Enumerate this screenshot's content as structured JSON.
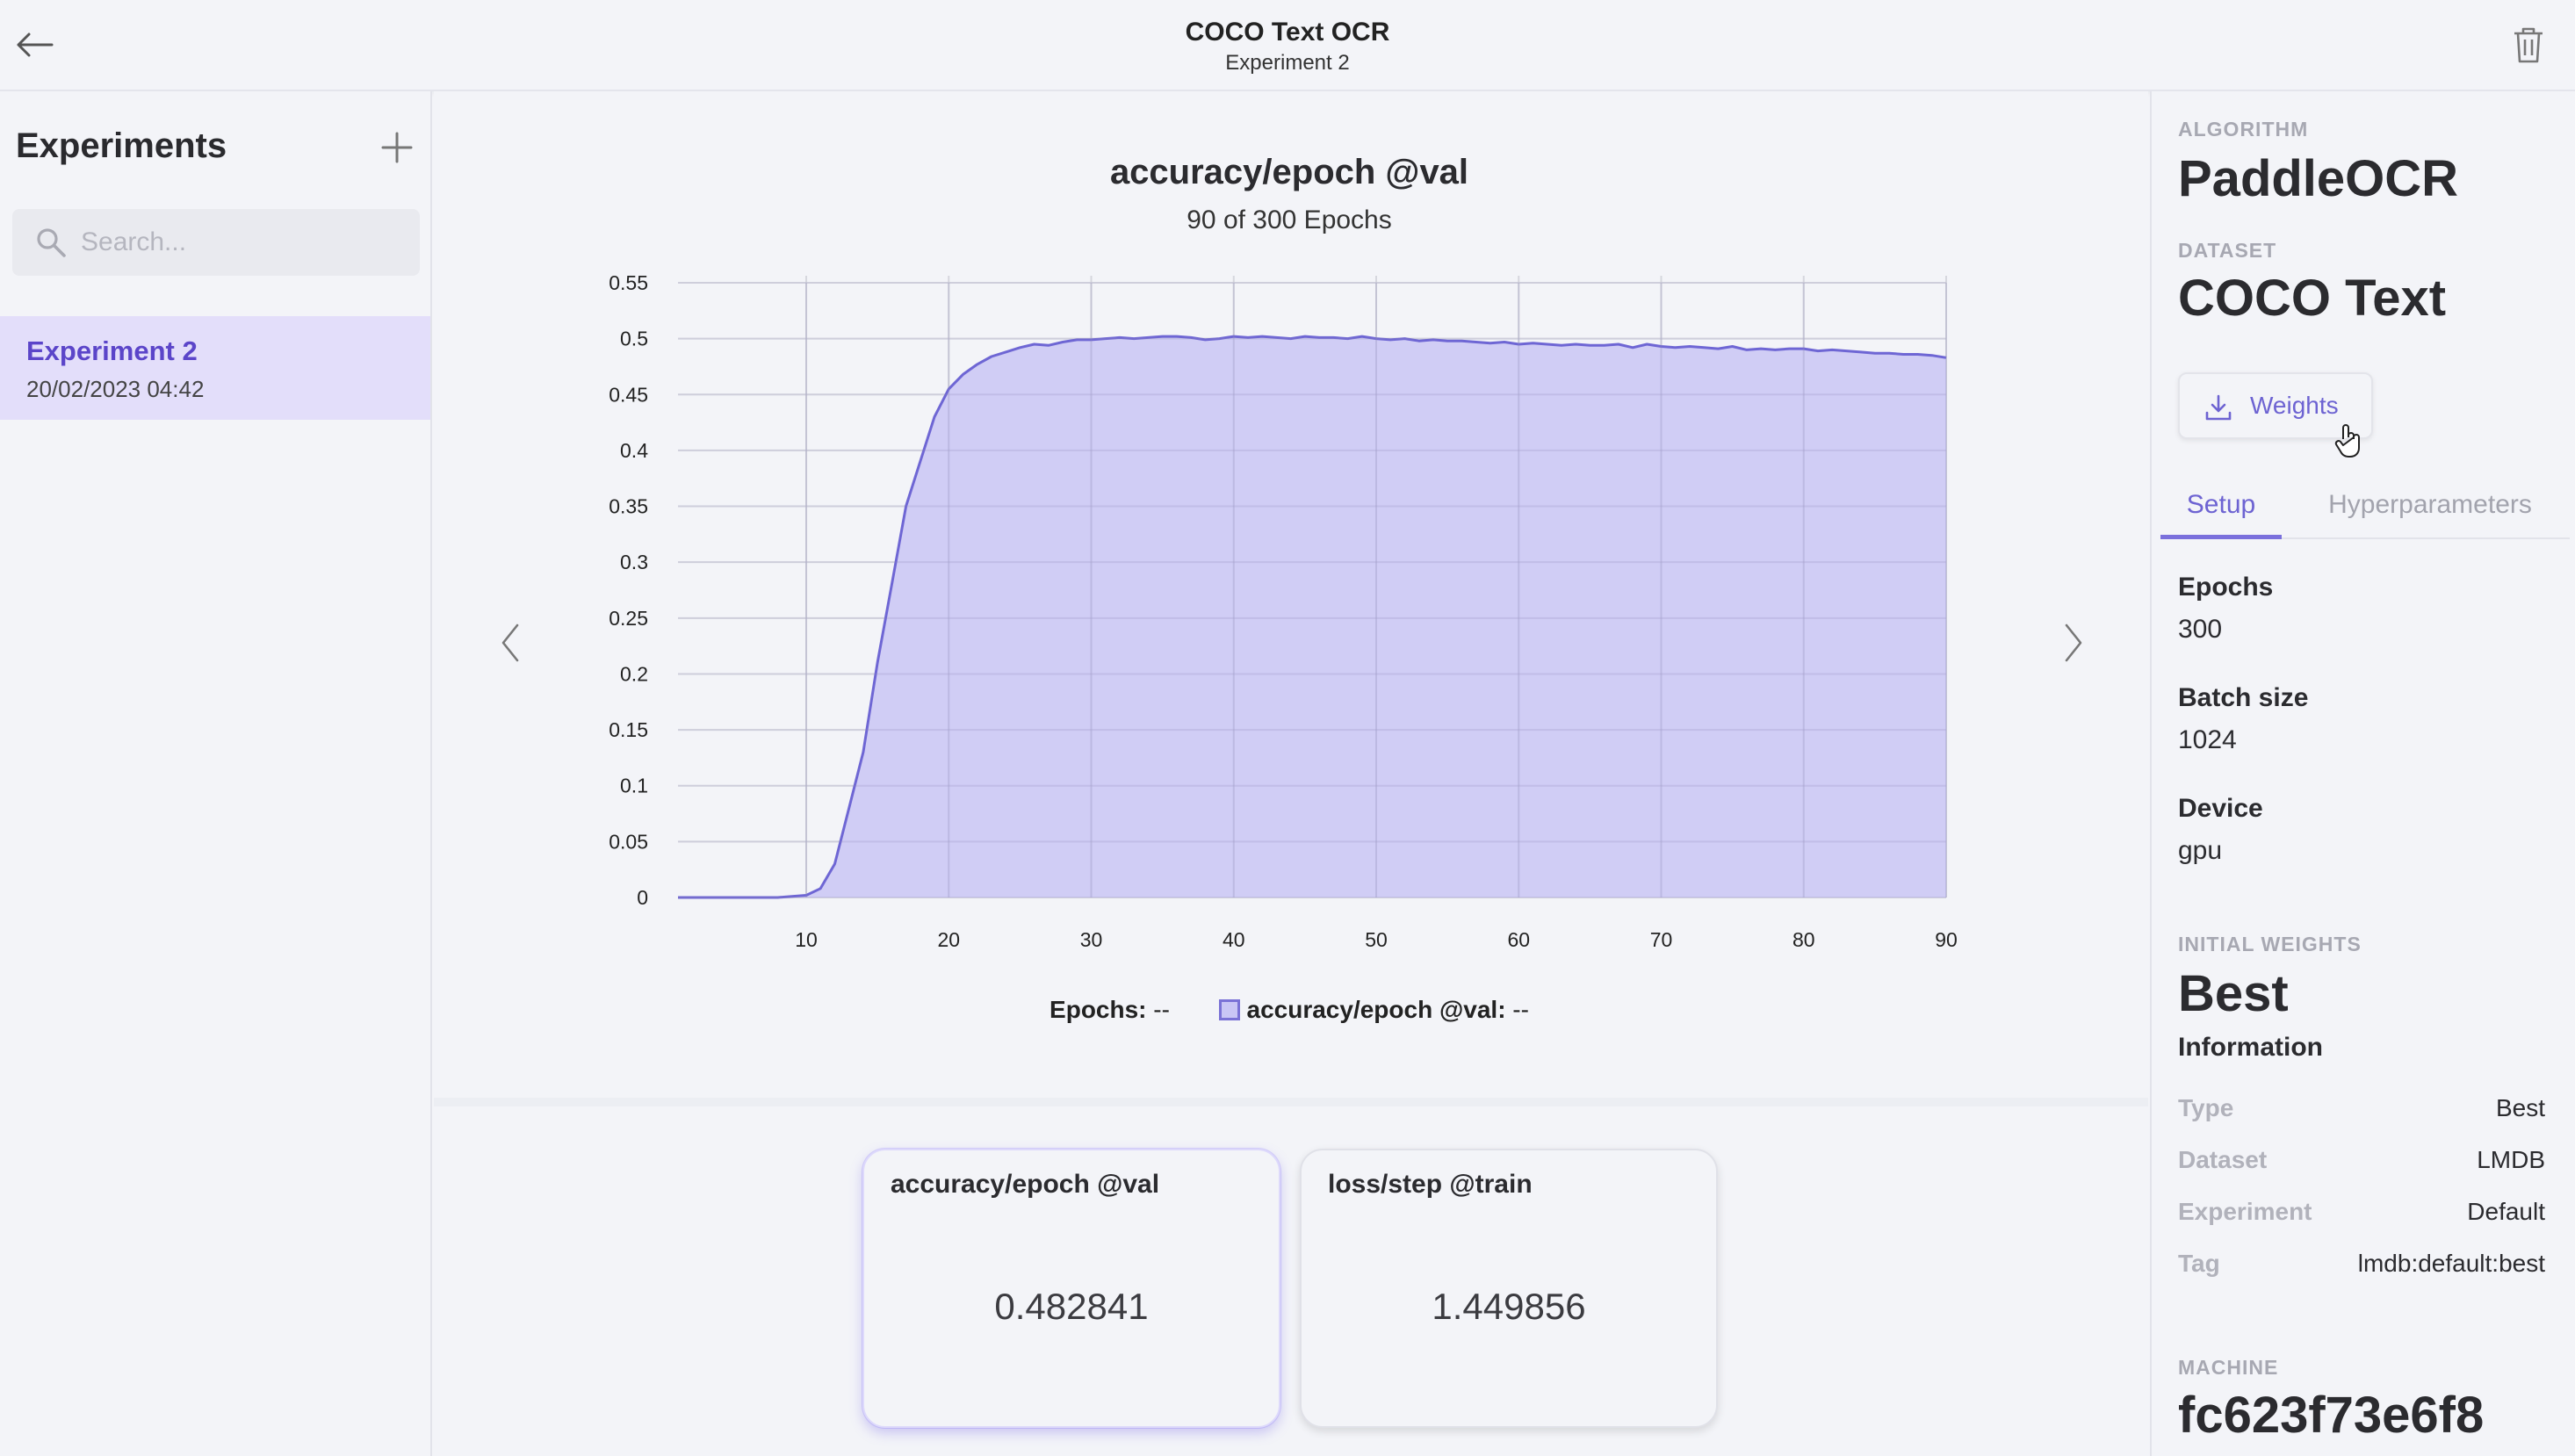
{
  "header": {
    "title": "COCO Text OCR",
    "subtitle": "Experiment 2"
  },
  "sidebar": {
    "title": "Experiments",
    "search_placeholder": "Search...",
    "items": [
      {
        "name": "Experiment 2",
        "date": "20/02/2023 04:42"
      }
    ]
  },
  "chart_panel": {
    "title": "accuracy/epoch @val",
    "subtitle": "90 of 300 Epochs",
    "legend": {
      "x_label": "Epochs:",
      "x_value": "--",
      "series_label": "accuracy/epoch @val:",
      "series_value": "--"
    }
  },
  "chart_data": {
    "type": "area",
    "title": "accuracy/epoch @val",
    "xlabel": "Epochs",
    "ylabel": "",
    "xlim": [
      1,
      90
    ],
    "ylim": [
      0,
      0.55
    ],
    "x_ticks": [
      "10",
      "20",
      "30",
      "40",
      "50",
      "60",
      "70",
      "80",
      "90"
    ],
    "y_ticks": [
      "0",
      "0.05",
      "0.1",
      "0.15",
      "0.2",
      "0.25",
      "0.3",
      "0.35",
      "0.4",
      "0.45",
      "0.5",
      "0.55"
    ],
    "grid": true,
    "colors": {
      "line": "#6e66d4",
      "fill": "#c9c6f5"
    },
    "series": [
      {
        "name": "accuracy/epoch @val",
        "x": [
          1,
          2,
          3,
          4,
          5,
          6,
          7,
          8,
          9,
          10,
          11,
          12,
          13,
          14,
          15,
          16,
          17,
          18,
          19,
          20,
          21,
          22,
          23,
          24,
          25,
          26,
          27,
          28,
          29,
          30,
          31,
          32,
          33,
          34,
          35,
          36,
          37,
          38,
          39,
          40,
          41,
          42,
          43,
          44,
          45,
          46,
          47,
          48,
          49,
          50,
          51,
          52,
          53,
          54,
          55,
          56,
          57,
          58,
          59,
          60,
          61,
          62,
          63,
          64,
          65,
          66,
          67,
          68,
          69,
          70,
          71,
          72,
          73,
          74,
          75,
          76,
          77,
          78,
          79,
          80,
          81,
          82,
          83,
          84,
          85,
          86,
          87,
          88,
          89,
          90
        ],
        "values": [
          0,
          0,
          0,
          0,
          0,
          0,
          0,
          0,
          0.001,
          0.002,
          0.008,
          0.03,
          0.08,
          0.13,
          0.21,
          0.28,
          0.35,
          0.39,
          0.43,
          0.455,
          0.468,
          0.477,
          0.484,
          0.488,
          0.492,
          0.495,
          0.494,
          0.497,
          0.499,
          0.499,
          0.5,
          0.501,
          0.5,
          0.501,
          0.502,
          0.502,
          0.501,
          0.499,
          0.5,
          0.502,
          0.501,
          0.502,
          0.501,
          0.5,
          0.502,
          0.501,
          0.501,
          0.5,
          0.502,
          0.5,
          0.499,
          0.5,
          0.498,
          0.499,
          0.498,
          0.498,
          0.497,
          0.496,
          0.497,
          0.495,
          0.496,
          0.495,
          0.494,
          0.495,
          0.494,
          0.494,
          0.495,
          0.492,
          0.495,
          0.493,
          0.492,
          0.493,
          0.492,
          0.491,
          0.493,
          0.49,
          0.491,
          0.49,
          0.491,
          0.491,
          0.489,
          0.49,
          0.489,
          0.488,
          0.487,
          0.487,
          0.486,
          0.486,
          0.485,
          0.483
        ]
      }
    ]
  },
  "metrics": [
    {
      "name": "accuracy/epoch @val",
      "value": "0.482841"
    },
    {
      "name": "loss/step @train",
      "value": "1.449856"
    }
  ],
  "details": {
    "algorithm_caption": "ALGORITHM",
    "algorithm": "PaddleOCR",
    "dataset_caption": "DATASET",
    "dataset": "COCO Text",
    "weights_button": "Weights",
    "tabs": [
      "Setup",
      "Hyperparameters"
    ],
    "setup": {
      "epochs_label": "Epochs",
      "epochs": "300",
      "batch_label": "Batch size",
      "batch": "1024",
      "device_label": "Device",
      "device": "gpu"
    },
    "initial_weights_caption": "INITIAL WEIGHTS",
    "initial_weights": "Best",
    "information_title": "Information",
    "info": [
      {
        "key": "Type",
        "value": "Best"
      },
      {
        "key": "Dataset",
        "value": "LMDB"
      },
      {
        "key": "Experiment",
        "value": "Default"
      },
      {
        "key": "Tag",
        "value": "lmdb:default:best"
      }
    ],
    "machine_caption": "MACHINE",
    "machine": "fc623f73e6f8"
  }
}
